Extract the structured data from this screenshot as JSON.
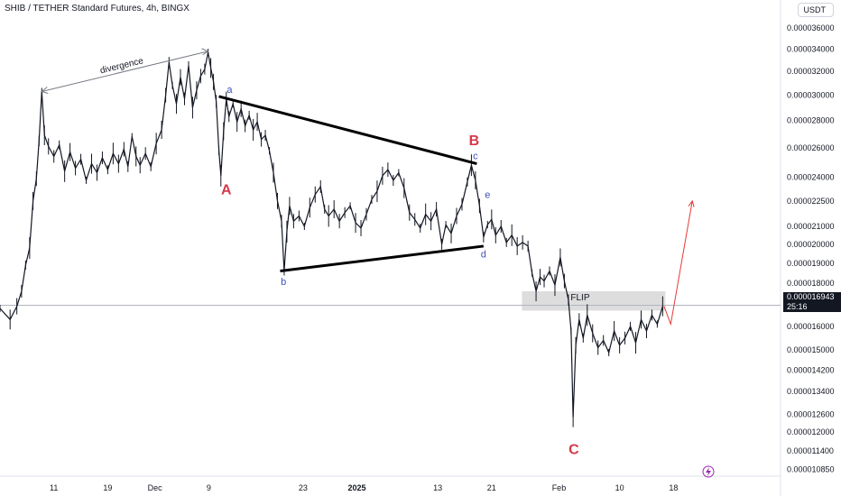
{
  "title": "SHIB / TETHER Standard Futures, 4h, BINGX",
  "currency_label": "USDT",
  "last_price": {
    "value": "0.000016943",
    "countdown": "25:16"
  },
  "chart_data": {
    "type": "line",
    "title": "SHIB / TETHER Standard Futures, 4h, BINGX",
    "y_axis": {
      "scale": "log",
      "ticks": [
        "0.000036000",
        "0.000034000",
        "0.000032000",
        "0.000030000",
        "0.000028000",
        "0.000026000",
        "0.000024000",
        "0.000022500",
        "0.000021000",
        "0.000020000",
        "0.000019000",
        "0.000018000",
        "0.000016000",
        "0.000015000",
        "0.000014200",
        "0.000013400",
        "0.000012600",
        "0.000012000",
        "0.000011400",
        "0.000010850"
      ],
      "range": [
        1.07e-05,
        3.7e-05
      ]
    },
    "x_axis": {
      "ticks": [
        {
          "label": "11",
          "t": 11
        },
        {
          "label": "19",
          "t": 19
        },
        {
          "label": "Dec",
          "t": 26
        },
        {
          "label": "9",
          "t": 34
        },
        {
          "label": "23",
          "t": 48
        },
        {
          "label": "2025",
          "t": 56,
          "bold": true
        },
        {
          "label": "13",
          "t": 68
        },
        {
          "label": "21",
          "t": 76
        },
        {
          "label": "Feb",
          "t": 86
        },
        {
          "label": "10",
          "t": 95
        },
        {
          "label": "18",
          "t": 103
        }
      ],
      "range": [
        3.0,
        118.5
      ],
      "unit": "days since 1 Nov 2024"
    },
    "series": [
      {
        "name": "",
        "points": [
          [
            3.0,
            1.68e-05
          ],
          [
            4.5,
            1.63e-05
          ],
          [
            5.5,
            1.69e-05
          ],
          [
            6.2,
            1.76e-05
          ],
          [
            6.8,
            1.89e-05
          ],
          [
            7.4,
            1.98e-05
          ],
          [
            7.9,
            2.25e-05
          ],
          [
            8.4,
            2.39e-05
          ],
          [
            8.8,
            2.65e-05
          ],
          [
            9.2,
            3.03e-05
          ],
          [
            9.6,
            2.69e-05
          ],
          [
            10.2,
            2.61e-05
          ],
          [
            11.0,
            2.54e-05
          ],
          [
            11.8,
            2.62e-05
          ],
          [
            12.6,
            2.44e-05
          ],
          [
            13.4,
            2.57e-05
          ],
          [
            14.2,
            2.46e-05
          ],
          [
            15.0,
            2.52e-05
          ],
          [
            15.8,
            2.38e-05
          ],
          [
            16.6,
            2.49e-05
          ],
          [
            17.4,
            2.43e-05
          ],
          [
            18.2,
            2.53e-05
          ],
          [
            19.0,
            2.45e-05
          ],
          [
            19.8,
            2.56e-05
          ],
          [
            20.6,
            2.49e-05
          ],
          [
            21.4,
            2.59e-05
          ],
          [
            22.0,
            2.47e-05
          ],
          [
            22.6,
            2.68e-05
          ],
          [
            23.2,
            2.54e-05
          ],
          [
            23.8,
            2.48e-05
          ],
          [
            24.6,
            2.56e-05
          ],
          [
            25.4,
            2.47e-05
          ],
          [
            26.2,
            2.63e-05
          ],
          [
            27.0,
            2.73e-05
          ],
          [
            27.6,
            3e-05
          ],
          [
            28.1,
            3.28e-05
          ],
          [
            28.6,
            3.08e-05
          ],
          [
            29.2,
            2.93e-05
          ],
          [
            29.8,
            3.15e-05
          ],
          [
            30.4,
            2.97e-05
          ],
          [
            31.0,
            3.25e-05
          ],
          [
            31.6,
            2.9e-05
          ],
          [
            32.2,
            3.04e-05
          ],
          [
            32.8,
            3.16e-05
          ],
          [
            33.4,
            3.22e-05
          ],
          [
            33.9,
            3.37e-05
          ],
          [
            34.3,
            3.23e-05
          ],
          [
            34.7,
            3.11e-05
          ],
          [
            35.1,
            2.95e-05
          ],
          [
            35.5,
            2.58e-05
          ],
          [
            35.8,
            2.41e-05
          ],
          [
            36.2,
            2.72e-05
          ],
          [
            36.6,
            2.97e-05
          ],
          [
            37.0,
            2.83e-05
          ],
          [
            37.6,
            2.93e-05
          ],
          [
            38.2,
            2.79e-05
          ],
          [
            38.8,
            2.89e-05
          ],
          [
            39.4,
            2.76e-05
          ],
          [
            40.0,
            2.84e-05
          ],
          [
            40.6,
            2.73e-05
          ],
          [
            41.2,
            2.79e-05
          ],
          [
            41.8,
            2.66e-05
          ],
          [
            42.4,
            2.69e-05
          ],
          [
            43.0,
            2.58e-05
          ],
          [
            43.6,
            2.43e-05
          ],
          [
            44.2,
            2.25e-05
          ],
          [
            44.8,
            2.13e-05
          ],
          [
            45.2,
            1.86e-05
          ],
          [
            45.6,
            2.07e-05
          ],
          [
            46.0,
            2.22e-05
          ],
          [
            46.6,
            2.13e-05
          ],
          [
            47.4,
            2.16e-05
          ],
          [
            48.2,
            2.1e-05
          ],
          [
            49.0,
            2.21e-05
          ],
          [
            49.8,
            2.29e-05
          ],
          [
            50.6,
            2.34e-05
          ],
          [
            51.2,
            2.2e-05
          ],
          [
            51.8,
            2.16e-05
          ],
          [
            52.6,
            2.2e-05
          ],
          [
            53.4,
            2.13e-05
          ],
          [
            54.2,
            2.18e-05
          ],
          [
            55.0,
            2.22e-05
          ],
          [
            55.8,
            2.12e-05
          ],
          [
            56.6,
            2.09e-05
          ],
          [
            57.4,
            2.17e-05
          ],
          [
            58.2,
            2.26e-05
          ],
          [
            59.0,
            2.31e-05
          ],
          [
            59.8,
            2.41e-05
          ],
          [
            60.6,
            2.45e-05
          ],
          [
            61.4,
            2.38e-05
          ],
          [
            62.2,
            2.43e-05
          ],
          [
            63.0,
            2.33e-05
          ],
          [
            63.8,
            2.18e-05
          ],
          [
            64.6,
            2.14e-05
          ],
          [
            65.4,
            2.09e-05
          ],
          [
            66.2,
            2.17e-05
          ],
          [
            67.0,
            2.13e-05
          ],
          [
            67.8,
            2.2e-05
          ],
          [
            68.6,
            2e-05
          ],
          [
            69.2,
            2.11e-05
          ],
          [
            70.0,
            2.06e-05
          ],
          [
            70.8,
            2.16e-05
          ],
          [
            71.6,
            2.23e-05
          ],
          [
            72.4,
            2.37e-05
          ],
          [
            73.0,
            2.48e-05
          ],
          [
            73.6,
            2.38e-05
          ],
          [
            74.2,
            2.22e-05
          ],
          [
            74.8,
            2.04e-05
          ],
          [
            75.4,
            2.11e-05
          ],
          [
            76.0,
            2.14e-05
          ],
          [
            76.6,
            2.05e-05
          ],
          [
            77.4,
            2.1e-05
          ],
          [
            78.2,
            2.01e-05
          ],
          [
            79.0,
            2.05e-05
          ],
          [
            79.8,
            1.99e-05
          ],
          [
            80.6,
            2.01e-05
          ],
          [
            81.4,
            1.99e-05
          ],
          [
            82.0,
            1.85e-05
          ],
          [
            82.6,
            1.76e-05
          ],
          [
            83.2,
            1.83e-05
          ],
          [
            83.8,
            1.81e-05
          ],
          [
            84.6,
            1.86e-05
          ],
          [
            85.4,
            1.79e-05
          ],
          [
            86.2,
            1.93e-05
          ],
          [
            86.8,
            1.81e-05
          ],
          [
            87.4,
            1.72e-05
          ],
          [
            87.8,
            1.58e-05
          ],
          [
            88.1,
            1.25e-05
          ],
          [
            88.5,
            1.52e-05
          ],
          [
            89.0,
            1.63e-05
          ],
          [
            89.6,
            1.55e-05
          ],
          [
            90.2,
            1.65e-05
          ],
          [
            91.0,
            1.57e-05
          ],
          [
            91.8,
            1.51e-05
          ],
          [
            92.6,
            1.54e-05
          ],
          [
            93.4,
            1.49e-05
          ],
          [
            94.2,
            1.58e-05
          ],
          [
            95.0,
            1.52e-05
          ],
          [
            95.8,
            1.55e-05
          ],
          [
            96.6,
            1.6e-05
          ],
          [
            97.4,
            1.53e-05
          ],
          [
            98.2,
            1.63e-05
          ],
          [
            99.0,
            1.58e-05
          ],
          [
            99.8,
            1.65e-05
          ],
          [
            100.6,
            1.61e-05
          ],
          [
            101.4,
            1.69e-05
          ]
        ]
      }
    ],
    "last_price_line": 1.6943e-05,
    "annotations": {
      "divergence_label": "divergence",
      "flip_label": "FLIP",
      "flip_zone": {
        "t0": 80.5,
        "t1": 101.8,
        "y0": 1.67e-05,
        "y1": 1.76e-05
      },
      "divergence_arrow": {
        "t0": 9.2,
        "y0": 3.03e-05,
        "t1": 33.9,
        "y1": 3.38e-05
      },
      "triangle_upper": {
        "t0": 35.5,
        "y0": 2.99e-05,
        "t1": 73.8,
        "y1": 2.49e-05
      },
      "triangle_lower": {
        "t0": 44.6,
        "y0": 1.86e-05,
        "t1": 74.8,
        "y1": 1.99e-05
      },
      "projection": [
        [
          101.6,
          1.69e-05
        ],
        [
          102.6,
          1.61e-05
        ],
        [
          105.8,
          2.25e-05
        ]
      ],
      "major_waves": [
        {
          "label": "A",
          "t": 36.6,
          "y": 2.29e-05
        },
        {
          "label": "B",
          "t": 73.4,
          "y": 2.62e-05
        },
        {
          "label": "C",
          "t": 88.2,
          "y": 1.13e-05
        }
      ],
      "minor_waves": [
        {
          "label": "a",
          "t": 37.1,
          "y": 3.02e-05
        },
        {
          "label": "b",
          "t": 45.1,
          "y": 1.79e-05
        },
        {
          "label": "c",
          "t": 73.6,
          "y": 2.52e-05
        },
        {
          "label": "d",
          "t": 74.8,
          "y": 1.93e-05
        },
        {
          "label": "e",
          "t": 75.4,
          "y": 2.27e-05
        }
      ]
    },
    "colors": {
      "price": "#131722",
      "trendlines": "#000000",
      "projection": "#e53935",
      "major_wave_labels": "#d6384b",
      "minor_wave_labels": "#3f51b5",
      "flip_zone": "#d9d9d9",
      "last_price_line": "#b2b5be"
    }
  },
  "footer": {
    "icon": "lightning-icon"
  }
}
